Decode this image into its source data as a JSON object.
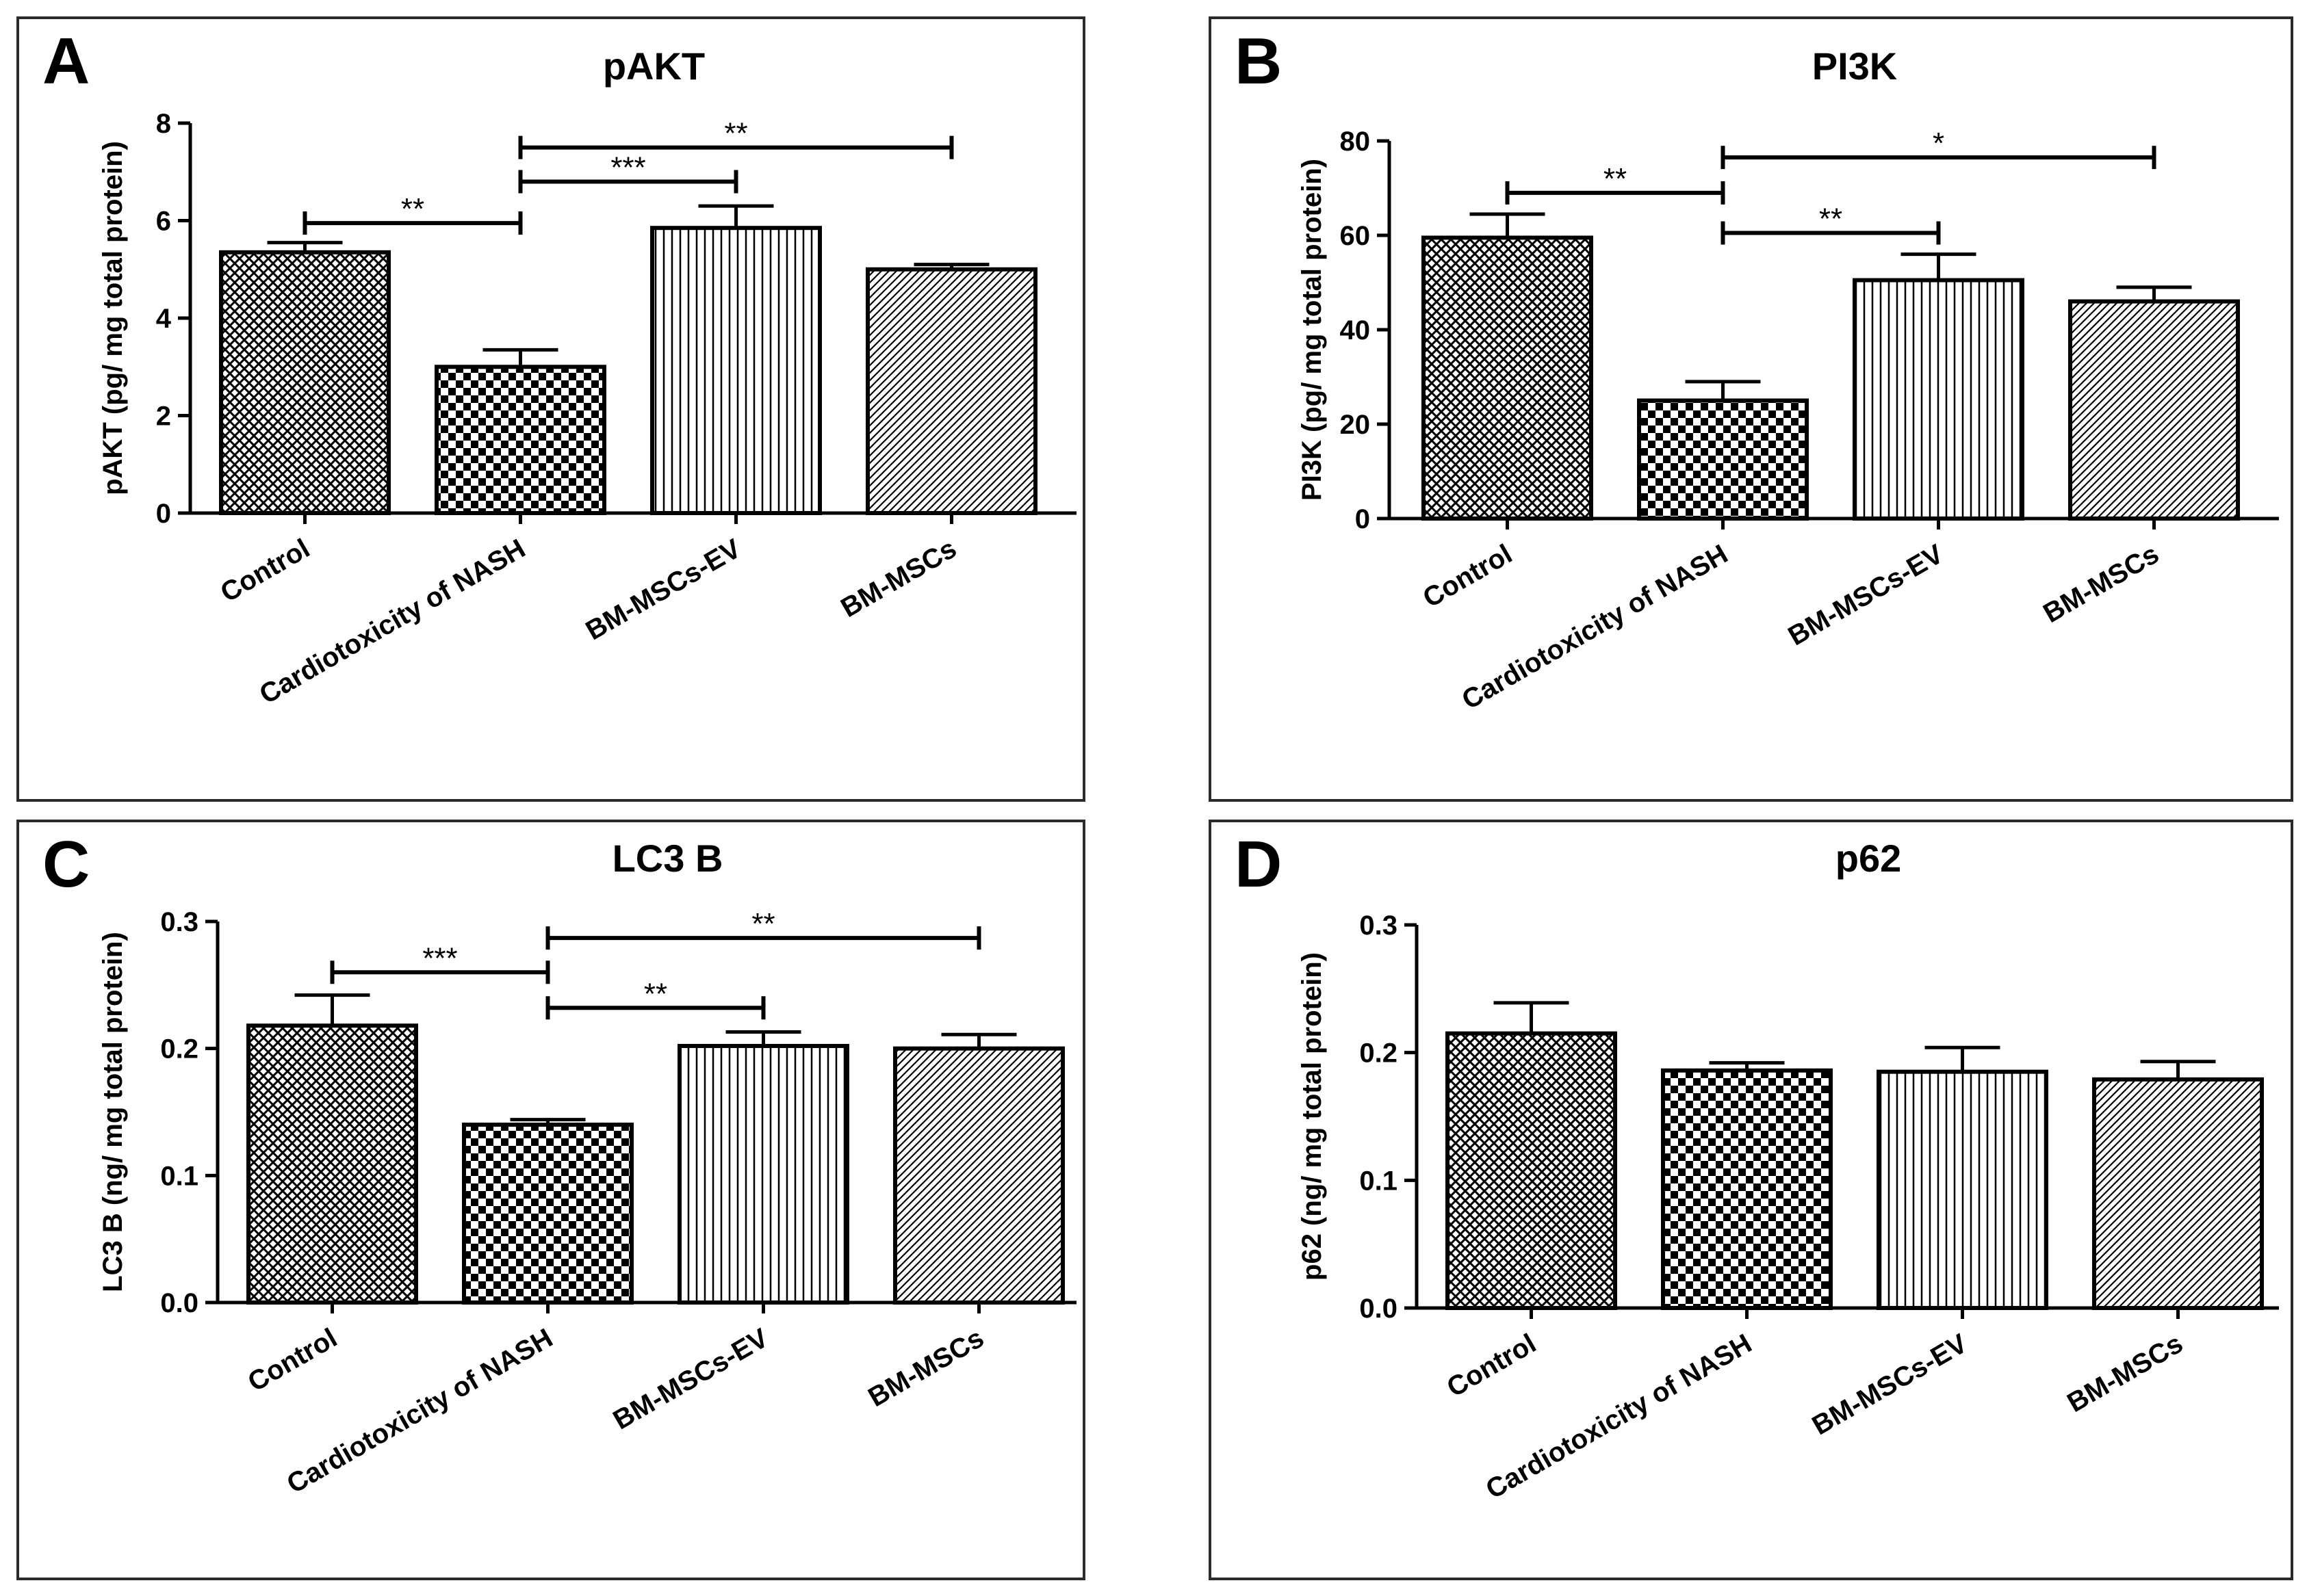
{
  "colors": {
    "ink": "#000000",
    "bar_fill": "#ffffff",
    "frame": "#2b2b2b"
  },
  "chart_data": [
    {
      "panel": "A",
      "type": "bar",
      "title": "pAKT",
      "ylabel": "pAKT (pg/ mg total protein)",
      "xlabel": "",
      "ylim": [
        0,
        8
      ],
      "yticks": [
        0,
        2,
        4,
        6,
        8
      ],
      "ytick_labels": [
        "0",
        "2",
        "4",
        "6",
        "8"
      ],
      "categories": [
        "Control",
        "Cardiotoxicity of NASH",
        "BM-MSCs-EV",
        "BM-MSCs"
      ],
      "values": [
        5.35,
        3.0,
        5.85,
        5.0
      ],
      "errors": [
        0.2,
        0.35,
        0.45,
        0.1
      ],
      "patterns": [
        "crosshatch",
        "checker",
        "vertical",
        "diagonal"
      ],
      "significance": [
        {
          "from": 0,
          "to": 1,
          "label": "**",
          "y": 5.95
        },
        {
          "from": 1,
          "to": 2,
          "label": "***",
          "y": 6.8
        },
        {
          "from": 1,
          "to": 3,
          "label": "**",
          "y": 7.5
        }
      ]
    },
    {
      "panel": "B",
      "type": "bar",
      "title": "PI3K",
      "ylabel": "PI3K (pg/ mg total protein)",
      "xlabel": "",
      "ylim": [
        0,
        80
      ],
      "yticks": [
        0,
        20,
        40,
        60,
        80
      ],
      "ytick_labels": [
        "0",
        "20",
        "40",
        "60",
        "80"
      ],
      "categories": [
        "Control",
        "Cardiotoxicity of NASH",
        "BM-MSCs-EV",
        "BM-MSCs"
      ],
      "values": [
        59.5,
        25.0,
        50.5,
        46.0
      ],
      "errors": [
        5.0,
        4.0,
        5.5,
        3.0
      ],
      "patterns": [
        "crosshatch",
        "checker",
        "vertical",
        "diagonal"
      ],
      "significance": [
        {
          "from": 0,
          "to": 1,
          "label": "**",
          "y": 69.0
        },
        {
          "from": 1,
          "to": 2,
          "label": "**",
          "y": 60.5
        },
        {
          "from": 1,
          "to": 3,
          "label": "*",
          "y": 76.5
        }
      ]
    },
    {
      "panel": "C",
      "type": "bar",
      "title": "LC3 B",
      "ylabel": "LC3 B (ng/ mg total protein)",
      "xlabel": "",
      "ylim": [
        0,
        0.3
      ],
      "yticks": [
        0,
        0.1,
        0.2,
        0.3
      ],
      "ytick_labels": [
        "0.0",
        "0.1",
        "0.2",
        "0.3"
      ],
      "categories": [
        "Control",
        "Cardiotoxicity of NASH",
        "BM-MSCs-EV",
        "BM-MSCs"
      ],
      "values": [
        0.218,
        0.14,
        0.202,
        0.2
      ],
      "errors": [
        0.024,
        0.004,
        0.011,
        0.011
      ],
      "patterns": [
        "crosshatch",
        "checker",
        "vertical",
        "diagonal"
      ],
      "significance": [
        {
          "from": 0,
          "to": 1,
          "label": "***",
          "y": 0.26
        },
        {
          "from": 1,
          "to": 2,
          "label": "**",
          "y": 0.232
        },
        {
          "from": 1,
          "to": 3,
          "label": "**",
          "y": 0.287
        }
      ]
    },
    {
      "panel": "D",
      "type": "bar",
      "title": "p62",
      "ylabel": "p62 (ng/ mg total protein)",
      "xlabel": "",
      "ylim": [
        0,
        0.3
      ],
      "yticks": [
        0,
        0.1,
        0.2,
        0.3
      ],
      "ytick_labels": [
        "0.0",
        "0.1",
        "0.2",
        "0.3"
      ],
      "categories": [
        "Control",
        "Cardiotoxicity of NASH",
        "BM-MSCs-EV",
        "BM-MSCs"
      ],
      "values": [
        0.215,
        0.186,
        0.185,
        0.179
      ],
      "errors": [
        0.024,
        0.006,
        0.019,
        0.014
      ],
      "patterns": [
        "crosshatch",
        "checker",
        "vertical",
        "diagonal"
      ],
      "significance": []
    }
  ]
}
